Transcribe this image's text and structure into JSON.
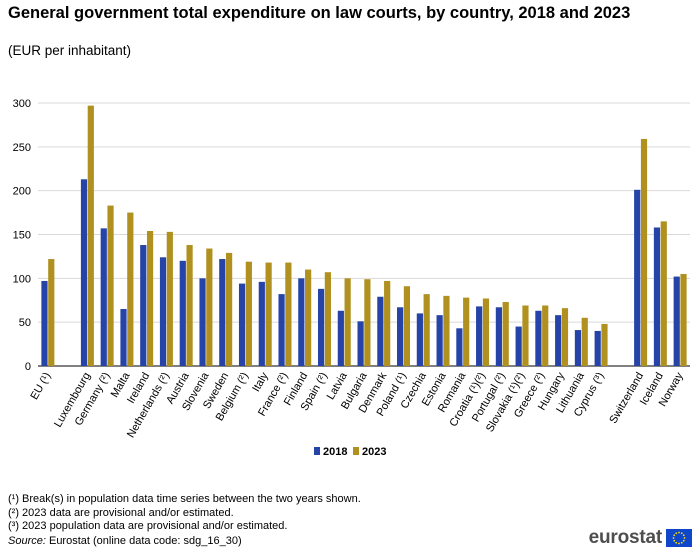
{
  "title": "General government total expenditure on law courts, by country, 2018 and 2023",
  "subtitle": "(EUR per inhabitant)",
  "chart_data": {
    "type": "bar",
    "title": "General government total expenditure on law courts, by country, 2018 and 2023",
    "ylabel": "EUR per inhabitant",
    "xlabel": "",
    "ylim": [
      0,
      300
    ],
    "yticks": [
      0,
      50,
      100,
      150,
      200,
      250,
      300
    ],
    "grid": true,
    "legend_position": "bottom-center",
    "categories": [
      "EU (¹)",
      "",
      "Luxembourg",
      "Germany (²)",
      "Malta",
      "Ireland",
      "Netherlands (²)",
      "Austria",
      "Slovenia",
      "Sweden",
      "Belgium (²)",
      "Italy",
      "France (²)",
      "Finland",
      "Spain (²)",
      "Latvia",
      "Bulgaria",
      "Denmark",
      "Poland (¹)",
      "Czechia",
      "Estonia",
      "Romania",
      "Croatia (¹)(²)",
      "Portugal (²)",
      "Slovakia (¹)(²)",
      "Greece (²)",
      "Hungary",
      "Lithuania",
      "Cyprus (³)",
      "",
      "Switzerland",
      "Iceland",
      "Norway"
    ],
    "series": [
      {
        "name": "2018",
        "color": "#2644A7",
        "values": [
          97,
          null,
          213,
          157,
          65,
          138,
          124,
          120,
          100,
          122,
          94,
          96,
          82,
          100,
          88,
          63,
          51,
          79,
          67,
          60,
          58,
          43,
          68,
          67,
          45,
          63,
          58,
          41,
          40,
          null,
          201,
          158,
          102
        ]
      },
      {
        "name": "2023",
        "color": "#B09120",
        "values": [
          122,
          null,
          297,
          183,
          175,
          154,
          153,
          138,
          134,
          129,
          119,
          118,
          118,
          110,
          107,
          100,
          99,
          97,
          91,
          82,
          80,
          78,
          77,
          73,
          69,
          69,
          66,
          55,
          48,
          null,
          259,
          165,
          105
        ]
      }
    ]
  },
  "legend": {
    "label_2018": "2018",
    "label_2023": "2023"
  },
  "notes": [
    "(¹) Break(s) in population data time series between the two years shown.",
    "(²) 2023 data are provisional and/or estimated.",
    "(³) 2023 population data are provisional and/or estimated."
  ],
  "source": {
    "label": "Source:",
    "text": " Eurostat (online data code: sdg_16_30)"
  },
  "logo": {
    "text": "eurostat"
  }
}
